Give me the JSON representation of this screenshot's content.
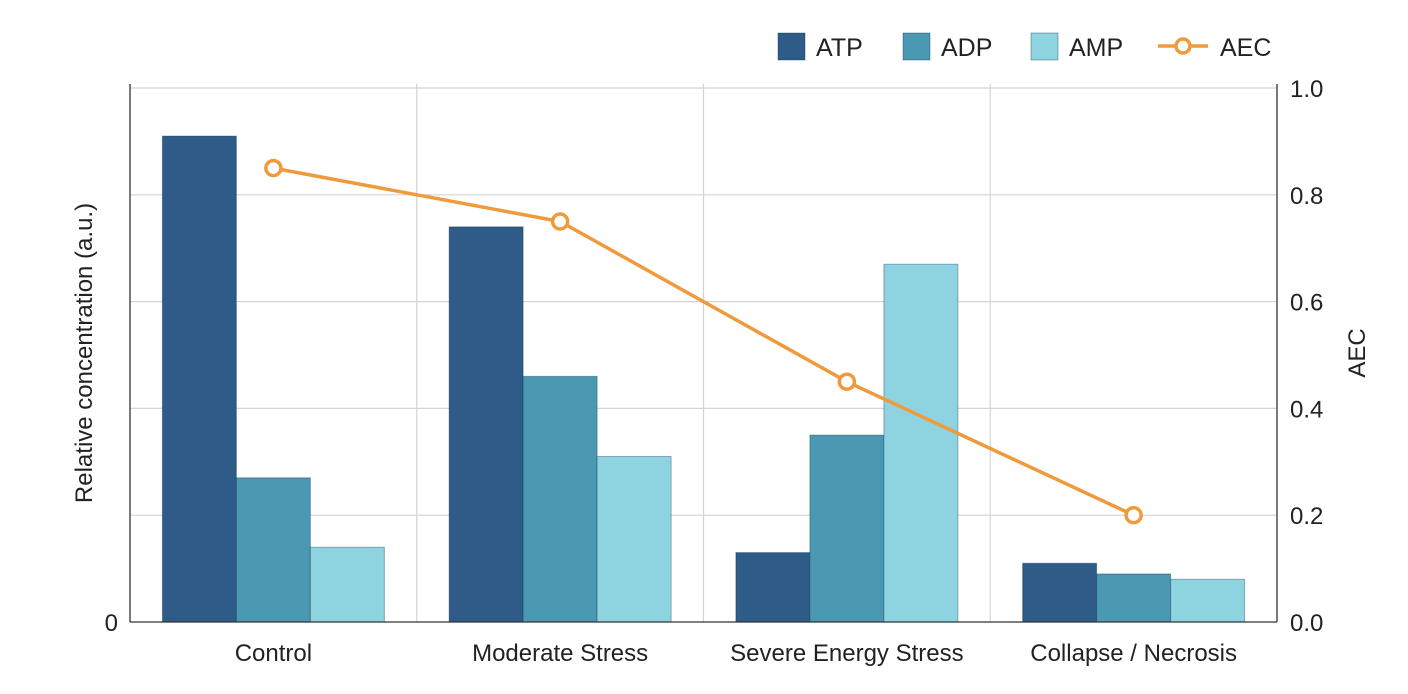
{
  "chart_data": {
    "type": "bar",
    "categories": [
      "Control",
      "Moderate Stress",
      "Severe Energy Stress",
      "Collapse / Necrosis"
    ],
    "series": [
      {
        "name": "ATP",
        "type": "bar",
        "axis": "left",
        "color": "#2e5b88",
        "values": [
          0.91,
          0.74,
          0.13,
          0.11
        ]
      },
      {
        "name": "ADP",
        "type": "bar",
        "axis": "left",
        "color": "#4b98b2",
        "values": [
          0.27,
          0.46,
          0.35,
          0.09
        ]
      },
      {
        "name": "AMP",
        "type": "bar",
        "axis": "left",
        "color": "#8ed4e0",
        "values": [
          0.14,
          0.31,
          0.67,
          0.08
        ]
      },
      {
        "name": "AEC",
        "type": "line",
        "axis": "right",
        "color": "#ef9a3c",
        "values": [
          0.85,
          0.75,
          0.45,
          0.2
        ]
      }
    ],
    "ylabel": "Relative concentration (a.u.)",
    "y_ticks": [
      "0"
    ],
    "y2label": "AEC",
    "y2lim": [
      0,
      1
    ],
    "y2_ticks": [
      "0.0",
      "0.2",
      "0.4",
      "0.6",
      "0.8",
      "1.0"
    ],
    "grid": true,
    "legend_position": "top-right"
  }
}
